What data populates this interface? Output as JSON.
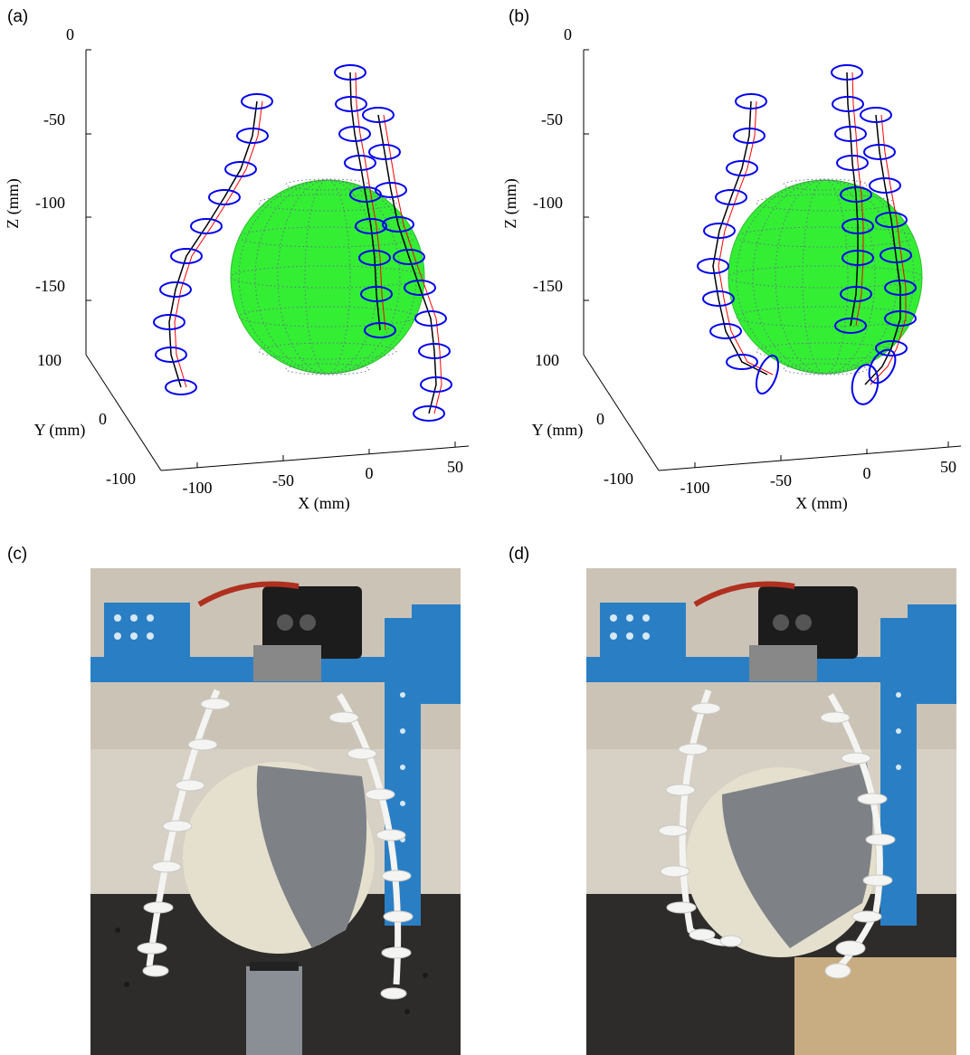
{
  "figure": {
    "panels": [
      {
        "id": "a",
        "label": "(a)"
      },
      {
        "id": "b",
        "label": "(b)"
      },
      {
        "id": "c",
        "label": "(c)"
      },
      {
        "id": "d",
        "label": "(d)"
      }
    ]
  },
  "chart_data": [
    {
      "type": "scatter",
      "panel": "(a)",
      "view": "3d",
      "xlabel": "X (mm)",
      "ylabel": "Y (mm)",
      "zlabel": "Z (mm)",
      "xticks": [
        "-100",
        "-50",
        "0",
        "50"
      ],
      "yticks": [
        "-100",
        "0",
        "100"
      ],
      "zticks": [
        "0",
        "-50",
        "-100",
        "-150"
      ],
      "objects": [
        "sphere",
        "finger-1",
        "finger-2",
        "finger-3"
      ],
      "colors": {
        "sphere": "#33ee33",
        "backbone": "#000000",
        "reference": "#ff0000",
        "disks": "#0000ee"
      }
    },
    {
      "type": "scatter",
      "panel": "(b)",
      "view": "3d",
      "xlabel": "X (mm)",
      "ylabel": "Y (mm)",
      "zlabel": "Z (mm)",
      "xticks": [
        "-100",
        "-50",
        "0",
        "50"
      ],
      "yticks": [
        "-100",
        "0",
        "100"
      ],
      "zticks": [
        "0",
        "-50",
        "-100",
        "-150"
      ],
      "objects": [
        "sphere",
        "finger-1",
        "finger-2",
        "finger-3"
      ],
      "colors": {
        "sphere": "#33ee33",
        "backbone": "#000000",
        "reference": "#ff0000",
        "disks": "#0000ee"
      }
    }
  ]
}
